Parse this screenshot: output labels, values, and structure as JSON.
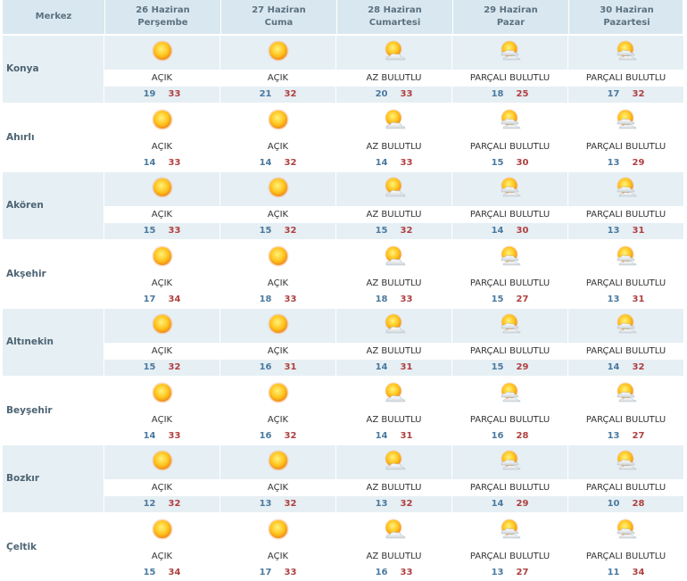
{
  "header": {
    "location_label": "Merkez",
    "days": [
      {
        "date": "26 Haziran",
        "weekday": "Perşembe"
      },
      {
        "date": "27 Haziran",
        "weekday": "Cuma"
      },
      {
        "date": "28 Haziran",
        "weekday": "Cumartesi"
      },
      {
        "date": "29 Haziran",
        "weekday": "Pazar"
      },
      {
        "date": "30 Haziran",
        "weekday": "Pazartesi"
      }
    ]
  },
  "colors": {
    "header_bg": "#d9e8f0",
    "band_bg": "#e6eff4",
    "low_temp": "#4a7aa0",
    "high_temp": "#b04040"
  },
  "icons": {
    "AÇIK": "sun-icon",
    "AZ BULUTLU": "sun-cloud-icon",
    "PARÇALI BULUTLU": "partly-cloudy-icon"
  },
  "rows": [
    {
      "name": "Konya",
      "days": [
        {
          "cond": "AÇIK",
          "lo": "19",
          "hi": "33"
        },
        {
          "cond": "AÇIK",
          "lo": "21",
          "hi": "32"
        },
        {
          "cond": "AZ BULUTLU",
          "lo": "20",
          "hi": "33"
        },
        {
          "cond": "PARÇALI BULUTLU",
          "lo": "18",
          "hi": "25"
        },
        {
          "cond": "PARÇALI BULUTLU",
          "lo": "17",
          "hi": "32"
        }
      ]
    },
    {
      "name": "Ahırlı",
      "days": [
        {
          "cond": "AÇIK",
          "lo": "14",
          "hi": "33"
        },
        {
          "cond": "AÇIK",
          "lo": "14",
          "hi": "32"
        },
        {
          "cond": "AZ BULUTLU",
          "lo": "14",
          "hi": "33"
        },
        {
          "cond": "PARÇALI BULUTLU",
          "lo": "15",
          "hi": "30"
        },
        {
          "cond": "PARÇALI BULUTLU",
          "lo": "13",
          "hi": "29"
        }
      ]
    },
    {
      "name": "Akören",
      "days": [
        {
          "cond": "AÇIK",
          "lo": "15",
          "hi": "33"
        },
        {
          "cond": "AÇIK",
          "lo": "15",
          "hi": "32"
        },
        {
          "cond": "AZ BULUTLU",
          "lo": "15",
          "hi": "32"
        },
        {
          "cond": "PARÇALI BULUTLU",
          "lo": "14",
          "hi": "30"
        },
        {
          "cond": "PARÇALI BULUTLU",
          "lo": "13",
          "hi": "31"
        }
      ]
    },
    {
      "name": "Akşehir",
      "days": [
        {
          "cond": "AÇIK",
          "lo": "17",
          "hi": "34"
        },
        {
          "cond": "AÇIK",
          "lo": "18",
          "hi": "33"
        },
        {
          "cond": "AZ BULUTLU",
          "lo": "18",
          "hi": "33"
        },
        {
          "cond": "PARÇALI BULUTLU",
          "lo": "15",
          "hi": "27"
        },
        {
          "cond": "PARÇALI BULUTLU",
          "lo": "13",
          "hi": "31"
        }
      ]
    },
    {
      "name": "Altınekin",
      "days": [
        {
          "cond": "AÇIK",
          "lo": "15",
          "hi": "32"
        },
        {
          "cond": "AÇIK",
          "lo": "16",
          "hi": "31"
        },
        {
          "cond": "AZ BULUTLU",
          "lo": "14",
          "hi": "31"
        },
        {
          "cond": "PARÇALI BULUTLU",
          "lo": "15",
          "hi": "29"
        },
        {
          "cond": "PARÇALI BULUTLU",
          "lo": "14",
          "hi": "32"
        }
      ]
    },
    {
      "name": "Beyşehir",
      "days": [
        {
          "cond": "AÇIK",
          "lo": "14",
          "hi": "33"
        },
        {
          "cond": "AÇIK",
          "lo": "16",
          "hi": "32"
        },
        {
          "cond": "AZ BULUTLU",
          "lo": "14",
          "hi": "31"
        },
        {
          "cond": "PARÇALI BULUTLU",
          "lo": "16",
          "hi": "28"
        },
        {
          "cond": "PARÇALI BULUTLU",
          "lo": "13",
          "hi": "27"
        }
      ]
    },
    {
      "name": "Bozkır",
      "days": [
        {
          "cond": "AÇIK",
          "lo": "12",
          "hi": "32"
        },
        {
          "cond": "AÇIK",
          "lo": "13",
          "hi": "32"
        },
        {
          "cond": "AZ BULUTLU",
          "lo": "13",
          "hi": "32"
        },
        {
          "cond": "PARÇALI BULUTLU",
          "lo": "14",
          "hi": "29"
        },
        {
          "cond": "PARÇALI BULUTLU",
          "lo": "10",
          "hi": "28"
        }
      ]
    },
    {
      "name": "Çeltik",
      "days": [
        {
          "cond": "AÇIK",
          "lo": "15",
          "hi": "34"
        },
        {
          "cond": "AÇIK",
          "lo": "17",
          "hi": "33"
        },
        {
          "cond": "AZ BULUTLU",
          "lo": "16",
          "hi": "33"
        },
        {
          "cond": "PARÇALI BULUTLU",
          "lo": "13",
          "hi": "27"
        },
        {
          "cond": "PARÇALI BULUTLU",
          "lo": "11",
          "hi": "34"
        }
      ]
    }
  ]
}
